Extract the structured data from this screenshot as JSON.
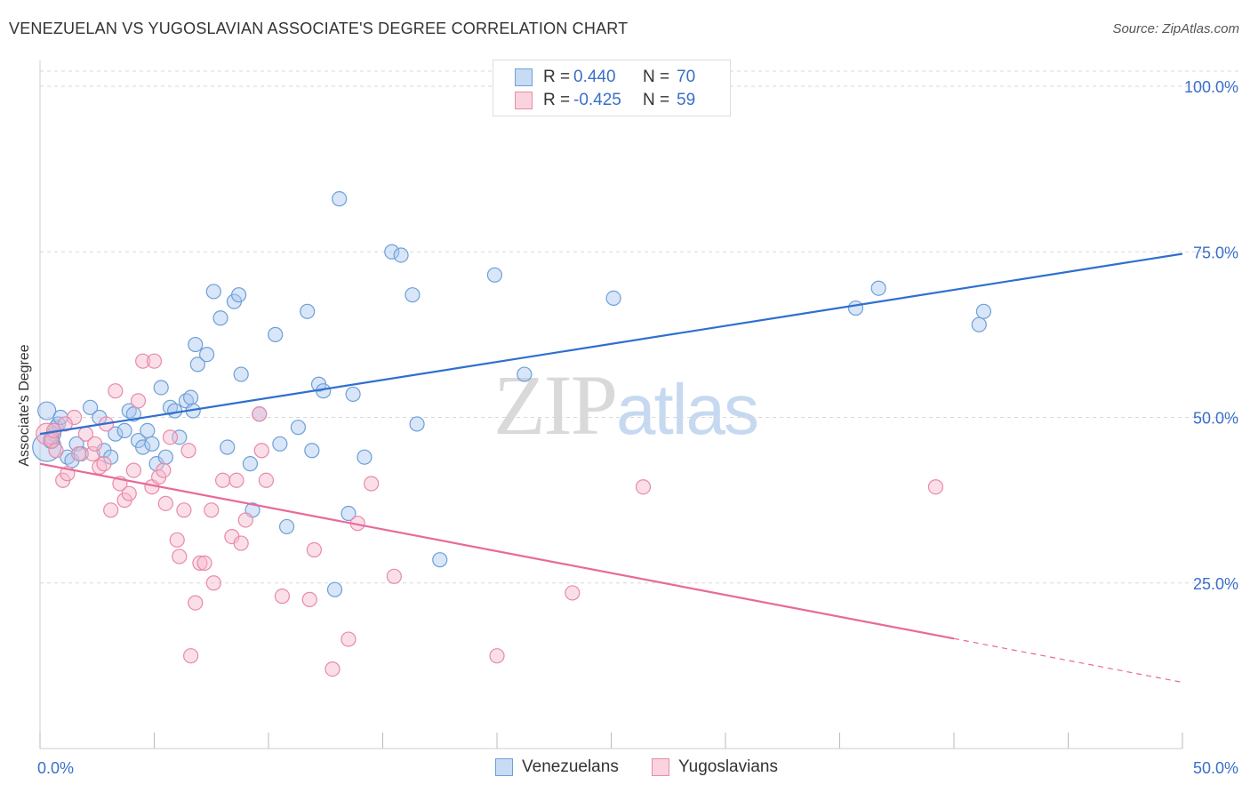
{
  "title": "VENEZUELAN VS YUGOSLAVIAN ASSOCIATE'S DEGREE CORRELATION CHART",
  "source": "Source: ZipAtlas.com",
  "watermark": {
    "zip": "ZIP",
    "atlas": "atlas"
  },
  "legend": {
    "rows": [
      {
        "r_label": "R =",
        "r_value": "0.440",
        "n_label": "N =",
        "n_value": "70",
        "color": "#a9c8f0"
      },
      {
        "r_label": "R =",
        "r_value": "-0.425",
        "n_label": "N =",
        "n_value": "59",
        "color": "#f7b8cb"
      }
    ]
  },
  "bottom_legend": {
    "series1": "Venezuelans",
    "series2": "Yugoslavians"
  },
  "colors": {
    "blue_fill": "#a9c8f0",
    "blue_stroke": "#6e9fd8",
    "blue_line": "#2f6fcf",
    "pink_fill": "#f7b8cb",
    "pink_stroke": "#e88aa8",
    "pink_line": "#e8699a",
    "axis_text": "#3a6fc9",
    "grid": "#d8d8d8"
  },
  "chart_data": {
    "type": "scatter",
    "title": "VENEZUELAN VS YUGOSLAVIAN ASSOCIATE'S DEGREE CORRELATION CHART",
    "xlabel": "",
    "ylabel": "Associate's Degree",
    "xlim": [
      0,
      50
    ],
    "ylim": [
      0,
      100
    ],
    "x_tick_labels": [
      "0.0%",
      "50.0%"
    ],
    "y_ticks": [
      25,
      50,
      75,
      100
    ],
    "y_tick_labels": [
      "25.0%",
      "50.0%",
      "75.0%",
      "100.0%"
    ],
    "grid": true,
    "legend_position": "top-center",
    "series": [
      {
        "name": "Venezuelans",
        "R": 0.44,
        "N": 70,
        "trend": {
          "x": [
            0,
            50
          ],
          "y": [
            47.5,
            74.7
          ],
          "dashed_from": null
        },
        "points": [
          [
            0.3,
            45.5,
            16
          ],
          [
            0.3,
            51,
            10
          ],
          [
            0.5,
            46.5,
            9
          ],
          [
            0.6,
            47.5,
            8
          ],
          [
            0.7,
            48.5,
            8
          ],
          [
            0.8,
            49,
            8
          ],
          [
            0.9,
            50,
            8
          ],
          [
            1.2,
            44,
            8
          ],
          [
            1.4,
            43.5,
            8
          ],
          [
            1.6,
            46,
            8
          ],
          [
            1.8,
            44.5,
            8
          ],
          [
            2.2,
            51.5,
            8
          ],
          [
            2.6,
            50,
            8
          ],
          [
            2.8,
            45,
            8
          ],
          [
            3.1,
            44,
            8
          ],
          [
            3.3,
            47.5,
            8
          ],
          [
            3.7,
            48,
            8
          ],
          [
            3.9,
            51,
            8
          ],
          [
            4.1,
            50.5,
            8
          ],
          [
            4.3,
            46.5,
            8
          ],
          [
            4.5,
            45.5,
            8
          ],
          [
            4.7,
            48,
            8
          ],
          [
            4.9,
            46,
            8
          ],
          [
            5.1,
            43,
            8
          ],
          [
            5.3,
            54.5,
            8
          ],
          [
            5.5,
            44,
            8
          ],
          [
            5.7,
            51.5,
            8
          ],
          [
            5.9,
            51,
            8
          ],
          [
            6.1,
            47,
            8
          ],
          [
            6.4,
            52.5,
            8
          ],
          [
            6.6,
            53,
            8
          ],
          [
            6.7,
            51,
            8
          ],
          [
            6.8,
            61,
            8
          ],
          [
            6.9,
            58,
            8
          ],
          [
            7.3,
            59.5,
            8
          ],
          [
            7.6,
            69,
            8
          ],
          [
            7.9,
            65,
            8
          ],
          [
            8.2,
            45.5,
            8
          ],
          [
            8.5,
            67.5,
            8
          ],
          [
            8.7,
            68.5,
            8
          ],
          [
            8.8,
            56.5,
            8
          ],
          [
            9.2,
            43,
            8
          ],
          [
            9.3,
            36,
            8
          ],
          [
            9.6,
            50.5,
            8
          ],
          [
            10.3,
            62.5,
            8
          ],
          [
            10.5,
            46,
            8
          ],
          [
            10.8,
            33.5,
            8
          ],
          [
            11.3,
            48.5,
            8
          ],
          [
            11.7,
            66,
            8
          ],
          [
            11.9,
            45,
            8
          ],
          [
            12.2,
            55,
            8
          ],
          [
            12.4,
            54,
            8
          ],
          [
            12.9,
            24,
            8
          ],
          [
            13.1,
            83,
            8
          ],
          [
            13.5,
            35.5,
            8
          ],
          [
            13.7,
            53.5,
            8
          ],
          [
            14.2,
            44,
            8
          ],
          [
            15.4,
            75,
            8
          ],
          [
            15.8,
            74.5,
            8
          ],
          [
            16.3,
            68.5,
            8
          ],
          [
            16.5,
            49,
            8
          ],
          [
            17.5,
            28.5,
            8
          ],
          [
            19.9,
            71.5,
            8
          ],
          [
            21.2,
            56.5,
            8
          ],
          [
            25.1,
            68,
            8
          ],
          [
            35.7,
            66.5,
            8
          ],
          [
            36.7,
            69.5,
            8
          ],
          [
            41.1,
            64,
            8
          ],
          [
            41.3,
            66,
            8
          ],
          [
            0.5,
            47,
            8
          ]
        ]
      },
      {
        "name": "Yugoslavians",
        "R": -0.425,
        "N": 59,
        "trend": {
          "x": [
            0,
            50
          ],
          "y": [
            43,
            10
          ],
          "dashed_from": 40
        },
        "points": [
          [
            0.3,
            47.5,
            12
          ],
          [
            0.5,
            46.5,
            8
          ],
          [
            0.7,
            45,
            8
          ],
          [
            1.0,
            40.5,
            8
          ],
          [
            1.2,
            41.5,
            8
          ],
          [
            1.5,
            50,
            8
          ],
          [
            1.7,
            44.5,
            8
          ],
          [
            2.0,
            47.5,
            8
          ],
          [
            2.3,
            44.5,
            8
          ],
          [
            2.6,
            42.5,
            8
          ],
          [
            2.8,
            43,
            8
          ],
          [
            2.9,
            49,
            8
          ],
          [
            3.1,
            36,
            8
          ],
          [
            3.3,
            54,
            8
          ],
          [
            3.5,
            40,
            8
          ],
          [
            3.7,
            37.5,
            8
          ],
          [
            3.9,
            38.5,
            8
          ],
          [
            4.1,
            42,
            8
          ],
          [
            4.3,
            52.5,
            8
          ],
          [
            4.5,
            58.5,
            8
          ],
          [
            4.9,
            39.5,
            8
          ],
          [
            5.0,
            58.5,
            8
          ],
          [
            5.2,
            41,
            8
          ],
          [
            5.4,
            42,
            8
          ],
          [
            5.5,
            37,
            8
          ],
          [
            5.7,
            47,
            8
          ],
          [
            6.0,
            31.5,
            8
          ],
          [
            6.1,
            29,
            8
          ],
          [
            6.3,
            36,
            8
          ],
          [
            6.5,
            45,
            8
          ],
          [
            6.6,
            14,
            8
          ],
          [
            6.8,
            22,
            8
          ],
          [
            7.0,
            28,
            8
          ],
          [
            7.2,
            28,
            8
          ],
          [
            7.5,
            36,
            8
          ],
          [
            7.6,
            25,
            8
          ],
          [
            8.0,
            40.5,
            8
          ],
          [
            8.4,
            32,
            8
          ],
          [
            8.6,
            40.5,
            8
          ],
          [
            8.8,
            31,
            8
          ],
          [
            9.0,
            34.5,
            8
          ],
          [
            9.6,
            50.5,
            8
          ],
          [
            9.7,
            45,
            8
          ],
          [
            9.9,
            40.5,
            8
          ],
          [
            10.6,
            23,
            8
          ],
          [
            11.8,
            22.5,
            8
          ],
          [
            12.0,
            30,
            8
          ],
          [
            12.8,
            12,
            8
          ],
          [
            13.5,
            16.5,
            8
          ],
          [
            13.9,
            34,
            8
          ],
          [
            14.5,
            40,
            8
          ],
          [
            15.5,
            26,
            8
          ],
          [
            20.0,
            14,
            8
          ],
          [
            23.3,
            23.5,
            8
          ],
          [
            26.4,
            39.5,
            8
          ],
          [
            39.2,
            39.5,
            8
          ],
          [
            1.1,
            49,
            8
          ],
          [
            2.4,
            46,
            8
          ],
          [
            0.6,
            48,
            8
          ]
        ]
      }
    ]
  }
}
